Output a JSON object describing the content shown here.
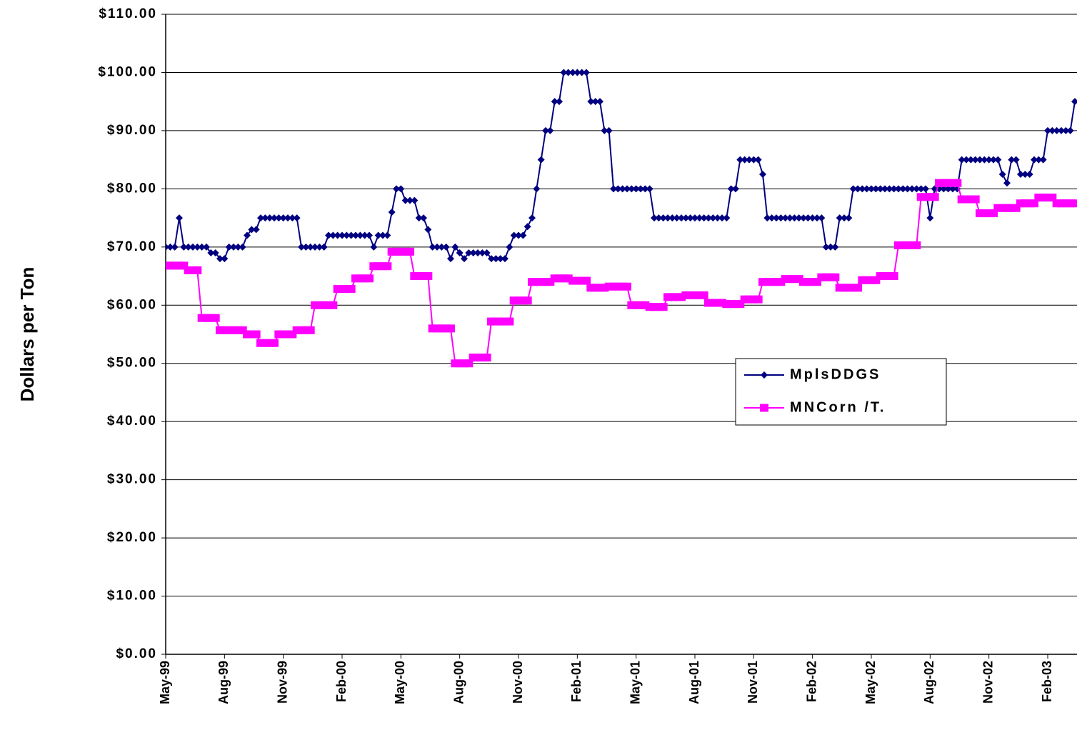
{
  "chart_data": {
    "type": "line",
    "y_label": "Dollars per Ton",
    "categories": [
      "May-99",
      null,
      null,
      null,
      null,
      null,
      null,
      null,
      null,
      null,
      null,
      null,
      null,
      "Aug-99",
      null,
      null,
      null,
      null,
      null,
      null,
      null,
      null,
      null,
      null,
      null,
      null,
      "Nov-99",
      null,
      null,
      null,
      null,
      null,
      null,
      null,
      null,
      null,
      null,
      null,
      null,
      "Feb-00",
      null,
      null,
      null,
      null,
      null,
      null,
      null,
      null,
      null,
      null,
      null,
      null,
      "May-00",
      null,
      null,
      null,
      null,
      null,
      null,
      null,
      null,
      null,
      null,
      null,
      null,
      "Aug-00",
      null,
      null,
      null,
      null,
      null,
      null,
      null,
      null,
      null,
      null,
      null,
      null,
      "Nov-00",
      null,
      null,
      null,
      null,
      null,
      null,
      null,
      null,
      null,
      null,
      null,
      null,
      "Feb-01",
      null,
      null,
      null,
      null,
      null,
      null,
      null,
      null,
      null,
      null,
      null,
      null,
      "May-01",
      null,
      null,
      null,
      null,
      null,
      null,
      null,
      null,
      null,
      null,
      null,
      null,
      "Aug-01",
      null,
      null,
      null,
      null,
      null,
      null,
      null,
      null,
      null,
      null,
      null,
      null,
      "Nov-01",
      null,
      null,
      null,
      null,
      null,
      null,
      null,
      null,
      null,
      null,
      null,
      null,
      "Feb-02",
      null,
      null,
      null,
      null,
      null,
      null,
      null,
      null,
      null,
      null,
      null,
      null,
      "May-02",
      null,
      null,
      null,
      null,
      null,
      null,
      null,
      null,
      null,
      null,
      null,
      null,
      "Aug-02",
      null,
      null,
      null,
      null,
      null,
      null,
      null,
      null,
      null,
      null,
      null,
      null,
      "Nov-02",
      null,
      null,
      null,
      null,
      null,
      null,
      null,
      null,
      null,
      null,
      null,
      null,
      "Feb-03",
      null,
      null,
      null,
      null,
      null,
      null
    ],
    "series": [
      {
        "name": "MplsDDGS",
        "color": "#000080",
        "marker": "diamond",
        "values": [
          70,
          70,
          70,
          75,
          70,
          70,
          70,
          70,
          70,
          70,
          69,
          69,
          68,
          68,
          70,
          70,
          70,
          70,
          72,
          73,
          73,
          75,
          75,
          75,
          75,
          75,
          75,
          75,
          75,
          75,
          70,
          70,
          70,
          70,
          70,
          70,
          72,
          72,
          72,
          72,
          72,
          72,
          72,
          72,
          72,
          72,
          70,
          72,
          72,
          72,
          76,
          80,
          80,
          78,
          78,
          78,
          75,
          75,
          73,
          70,
          70,
          70,
          70,
          68,
          70,
          69,
          68,
          69,
          69,
          69,
          69,
          69,
          68,
          68,
          68,
          68,
          70,
          72,
          72,
          72,
          73.5,
          75,
          80,
          85,
          90,
          90,
          95,
          95,
          100,
          100,
          100,
          100,
          100,
          100,
          95,
          95,
          95,
          90,
          90,
          80,
          80,
          80,
          80,
          80,
          80,
          80,
          80,
          80,
          75,
          75,
          75,
          75,
          75,
          75,
          75,
          75,
          75,
          75,
          75,
          75,
          75,
          75,
          75,
          75,
          75,
          80,
          80,
          85,
          85,
          85,
          85,
          85,
          82.5,
          75,
          75,
          75,
          75,
          75,
          75,
          75,
          75,
          75,
          75,
          75,
          75,
          75,
          70,
          70,
          70,
          75,
          75,
          75,
          80,
          80,
          80,
          80,
          80,
          80,
          80,
          80,
          80,
          80,
          80,
          80,
          80,
          80,
          80,
          80,
          80,
          75,
          80,
          80,
          80,
          80,
          80,
          80,
          85,
          85,
          85,
          85,
          85,
          85,
          85,
          85,
          85,
          82.5,
          81,
          85,
          85,
          82.5,
          82.5,
          82.5,
          85,
          85,
          85,
          90,
          90,
          90,
          90,
          90,
          90,
          95
        ]
      },
      {
        "name": "MNCorn /T.",
        "color": "#ff00ff",
        "marker": "square",
        "values": [
          66.8,
          66.8,
          66.8,
          66.8,
          66.8,
          66,
          66,
          66,
          57.8,
          57.8,
          57.8,
          57.8,
          55.7,
          55.7,
          55.7,
          55.7,
          55.7,
          55.7,
          55,
          55,
          55,
          53.5,
          53.5,
          53.5,
          53.5,
          55,
          55,
          55,
          55,
          55.7,
          55.7,
          55.7,
          55.7,
          60,
          60,
          60,
          60,
          60,
          62.8,
          62.8,
          62.8,
          62.8,
          64.6,
          64.6,
          64.6,
          64.6,
          66.7,
          66.7,
          66.7,
          66.7,
          69.2,
          69.2,
          69.2,
          69.2,
          69.2,
          65,
          65,
          65,
          65,
          56,
          56,
          56,
          56,
          56,
          50,
          50,
          50,
          50,
          51,
          51,
          51,
          51,
          57.2,
          57.2,
          57.2,
          57.2,
          57.2,
          60.8,
          60.8,
          60.8,
          60.8,
          64,
          64,
          64,
          64,
          64,
          64.6,
          64.6,
          64.6,
          64.6,
          64.2,
          64.2,
          64.2,
          64.2,
          63,
          63,
          63,
          63,
          63.2,
          63.2,
          63.2,
          63.2,
          63.2,
          60,
          60,
          60,
          60,
          59.7,
          59.7,
          59.7,
          59.7,
          61.4,
          61.4,
          61.4,
          61.4,
          61.7,
          61.7,
          61.7,
          61.7,
          61.7,
          60.4,
          60.4,
          60.4,
          60.4,
          60.2,
          60.2,
          60.2,
          60.2,
          61,
          61,
          61,
          61,
          64,
          64,
          64,
          64,
          64,
          64.5,
          64.5,
          64.5,
          64.5,
          64,
          64,
          64,
          64,
          64.8,
          64.8,
          64.8,
          64.8,
          63,
          63,
          63,
          63,
          63,
          64.3,
          64.3,
          64.3,
          64.3,
          65,
          65,
          65,
          65,
          70.3,
          70.3,
          70.3,
          70.3,
          70.3,
          78.6,
          78.6,
          78.6,
          78.6,
          81,
          81,
          81,
          81,
          81,
          78.2,
          78.2,
          78.2,
          78.2,
          75.8,
          75.8,
          75.8,
          75.8,
          76.7,
          76.7,
          76.7,
          76.7,
          76.7,
          77.5,
          77.5,
          77.5,
          77.5,
          78.5,
          78.5,
          78.5,
          78.5,
          77.5,
          77.5,
          77.5,
          77.5,
          77.5
        ]
      }
    ],
    "ylim": [
      0,
      110
    ],
    "yticks": [
      {
        "value": 0,
        "label": "$0.00"
      },
      {
        "value": 10,
        "label": "$10.00"
      },
      {
        "value": 20,
        "label": "$20.00"
      },
      {
        "value": 30,
        "label": "$30.00"
      },
      {
        "value": 40,
        "label": "$40.00"
      },
      {
        "value": 50,
        "label": "$50.00"
      },
      {
        "value": 60,
        "label": "$60.00"
      },
      {
        "value": 70,
        "label": "$70.00"
      },
      {
        "value": 80,
        "label": "$80.00"
      },
      {
        "value": 90,
        "label": "$90.00"
      },
      {
        "value": 100,
        "label": "$100.00"
      },
      {
        "value": 110,
        "label": "$110.00"
      }
    ],
    "grid": true,
    "legend": "right"
  }
}
